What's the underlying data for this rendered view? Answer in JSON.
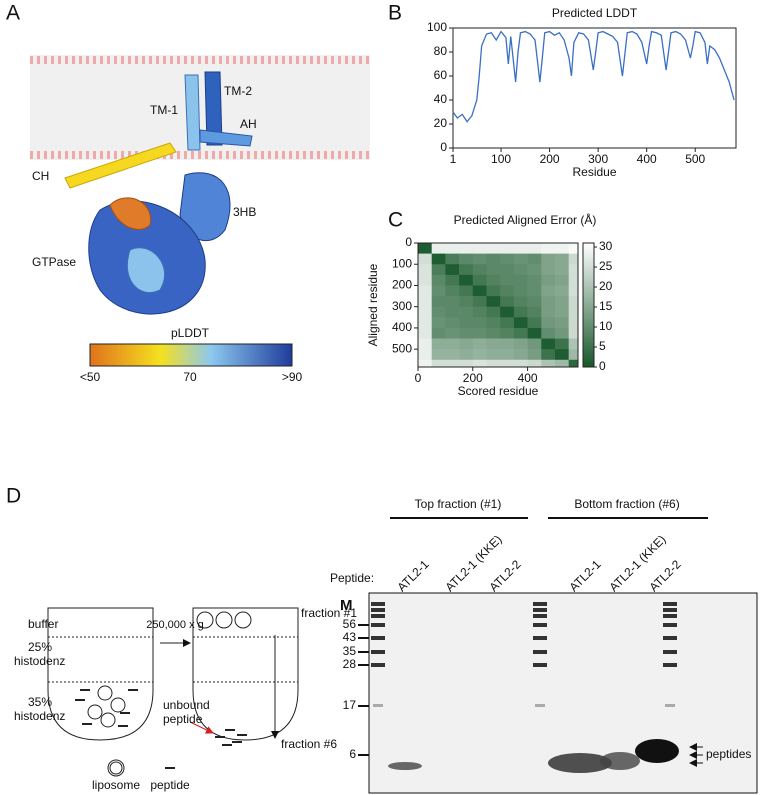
{
  "panel_labels": [
    "A",
    "B",
    "C",
    "D"
  ],
  "structure": {
    "labels": {
      "tm1": "TM-1",
      "tm2": "TM-2",
      "ah": "AH",
      "ch": "CH",
      "hb3": "3HB",
      "gtpase": "GTPase"
    },
    "colorbar": {
      "title": "pLDDT",
      "ticks": [
        "<50",
        "70",
        ">90"
      ]
    }
  },
  "chart_data": [
    {
      "type": "line",
      "title": "Predicted LDDT",
      "x_label": "Residue",
      "color": "#3a6fc4",
      "xlim": [
        1,
        584
      ],
      "ylim": [
        0,
        100
      ],
      "xticks": [
        1,
        100,
        200,
        300,
        400,
        500
      ],
      "yticks": [
        0,
        20,
        40,
        60,
        80,
        100
      ],
      "x": [
        1,
        10,
        20,
        30,
        40,
        50,
        55,
        60,
        70,
        80,
        90,
        100,
        110,
        115,
        120,
        130,
        135,
        140,
        150,
        160,
        170,
        180,
        185,
        190,
        200,
        210,
        220,
        230,
        240,
        245,
        250,
        260,
        270,
        280,
        290,
        295,
        300,
        310,
        320,
        330,
        340,
        350,
        355,
        360,
        370,
        380,
        390,
        400,
        405,
        410,
        420,
        430,
        440,
        445,
        450,
        460,
        470,
        480,
        490,
        495,
        500,
        510,
        520,
        525,
        530,
        540,
        550,
        560,
        570,
        580
      ],
      "values": [
        30,
        25,
        28,
        22,
        27,
        40,
        60,
        85,
        95,
        96,
        90,
        97,
        92,
        70,
        93,
        55,
        80,
        96,
        97,
        95,
        90,
        55,
        75,
        96,
        97,
        94,
        96,
        90,
        75,
        60,
        88,
        96,
        95,
        90,
        65,
        80,
        96,
        97,
        95,
        93,
        88,
        60,
        78,
        96,
        97,
        95,
        88,
        70,
        85,
        97,
        96,
        94,
        65,
        80,
        96,
        97,
        95,
        90,
        75,
        85,
        97,
        96,
        88,
        70,
        85,
        82,
        75,
        65,
        55,
        40
      ]
    },
    {
      "type": "heatmap",
      "title": "Predicted Aligned Error (Å)",
      "x_label": "Scored residue",
      "y_label": "Aligned residue",
      "xlim": [
        0,
        584
      ],
      "ylim": [
        0,
        584
      ],
      "xticks": [
        0,
        200,
        400
      ],
      "yticks": [
        0,
        100,
        200,
        300,
        400,
        500
      ],
      "edges": [
        0,
        50,
        100,
        150,
        200,
        250,
        300,
        350,
        400,
        450,
        500,
        550,
        584
      ],
      "matrix": [
        [
          1,
          28,
          28,
          28,
          28,
          28,
          28,
          28,
          28,
          29,
          29,
          30
        ],
        [
          25,
          1,
          7,
          9,
          10,
          9,
          10,
          11,
          10,
          14,
          15,
          24
        ],
        [
          26,
          7,
          1,
          6,
          8,
          9,
          9,
          10,
          11,
          14,
          15,
          25
        ],
        [
          26,
          9,
          6,
          1,
          6,
          8,
          9,
          9,
          10,
          13,
          14,
          25
        ],
        [
          27,
          10,
          8,
          6,
          1,
          6,
          8,
          9,
          10,
          14,
          15,
          25
        ],
        [
          27,
          9,
          9,
          8,
          6,
          1,
          6,
          8,
          9,
          13,
          14,
          24
        ],
        [
          27,
          10,
          9,
          9,
          8,
          6,
          1,
          6,
          8,
          13,
          14,
          24
        ],
        [
          27,
          11,
          10,
          9,
          9,
          8,
          6,
          1,
          6,
          12,
          13,
          24
        ],
        [
          27,
          10,
          11,
          10,
          10,
          9,
          8,
          6,
          1,
          10,
          12,
          24
        ],
        [
          28,
          16,
          16,
          15,
          16,
          15,
          15,
          14,
          12,
          1,
          5,
          20
        ],
        [
          28,
          17,
          17,
          16,
          17,
          16,
          16,
          15,
          13,
          5,
          1,
          18
        ],
        [
          29,
          25,
          25,
          25,
          26,
          25,
          25,
          25,
          24,
          20,
          18,
          3
        ]
      ],
      "colors": [
        "#17572a",
        "#ffffff"
      ],
      "colorbar": {
        "lim": [
          0,
          31
        ],
        "ticks": [
          0,
          5,
          10,
          15,
          20,
          25,
          30
        ]
      }
    }
  ],
  "assay": {
    "layers": [
      "buffer",
      "25%",
      "histodenz",
      "35%",
      "histodenz"
    ],
    "spin": "250,000 x g",
    "fractions": [
      "fraction #1",
      "fraction #6"
    ],
    "unbound": [
      "unbound",
      "peptide"
    ],
    "legend": [
      "liposome",
      "peptide"
    ]
  },
  "gel": {
    "headers": [
      "Top fraction (#1)",
      "Bottom fraction (#6)"
    ],
    "row_label": "Peptide:",
    "lanes": [
      "ATL2-1",
      "ATL2-1 (KKE)",
      "ATL2-2",
      "ATL2-1",
      "ATL2-1 (KKE)",
      "ATL2-2"
    ],
    "marker_label": "M",
    "markers": [
      56,
      43,
      35,
      28,
      17,
      6
    ],
    "band_label": "peptides"
  }
}
